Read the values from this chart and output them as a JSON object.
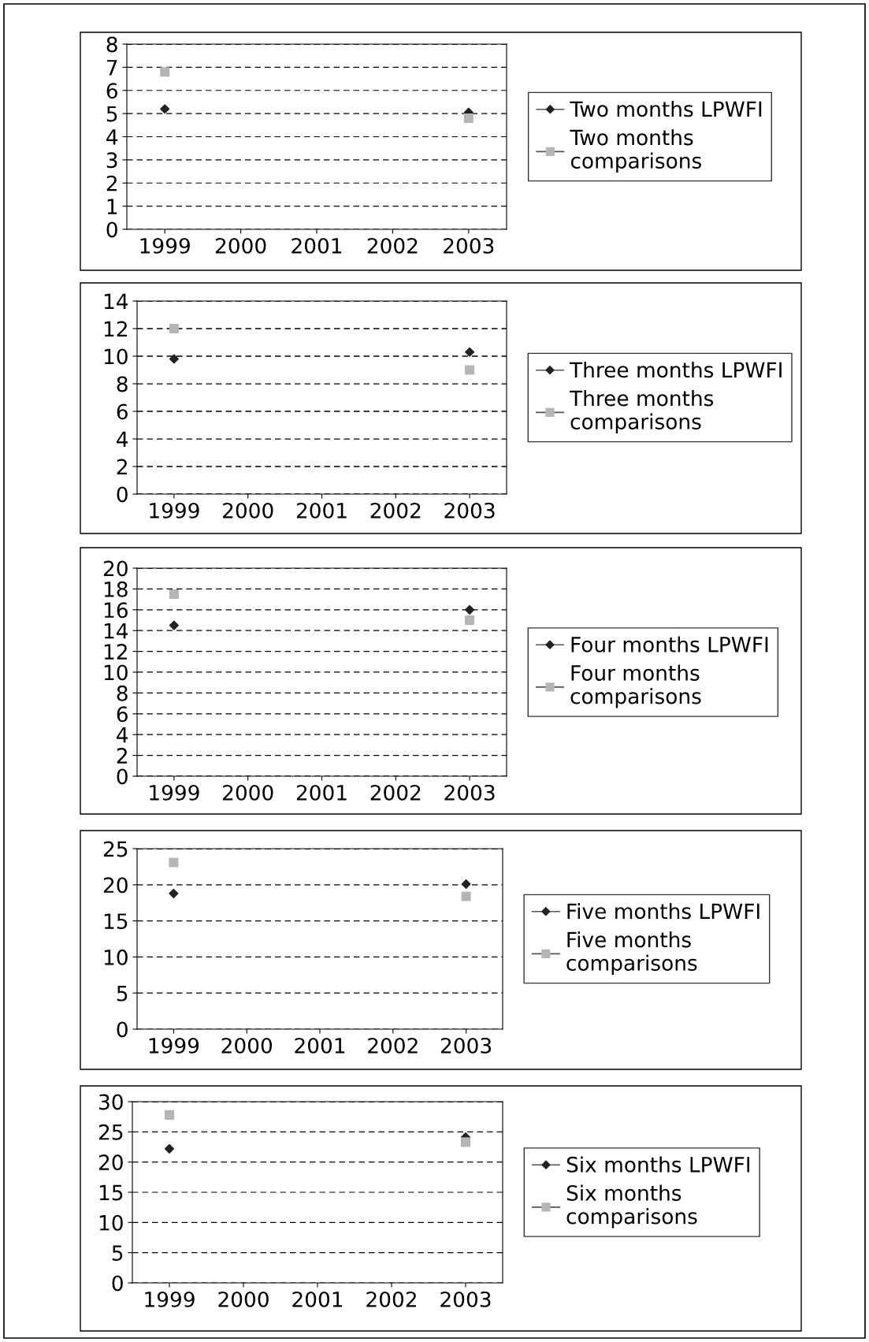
{
  "chart_data": [
    {
      "type": "scatter",
      "categories": [
        "1999",
        "2000",
        "2001",
        "2002",
        "2003"
      ],
      "ylim": [
        0,
        8
      ],
      "yticks": [
        0,
        1,
        2,
        3,
        4,
        5,
        6,
        7,
        8
      ],
      "grid": "y",
      "legend": "right",
      "series": [
        {
          "name": "Two months LPWFI",
          "color": "#222222",
          "marker": "diamond",
          "values": [
            5.2,
            null,
            null,
            null,
            5.05
          ]
        },
        {
          "name": "Two months comparisons",
          "color": "#b5b5b5",
          "marker": "square",
          "values": [
            6.8,
            null,
            null,
            null,
            4.8
          ]
        }
      ]
    },
    {
      "type": "scatter",
      "categories": [
        "1999",
        "2000",
        "2001",
        "2002",
        "2003"
      ],
      "ylim": [
        0,
        14
      ],
      "yticks": [
        0,
        2,
        4,
        6,
        8,
        10,
        12,
        14
      ],
      "grid": "y",
      "legend": "right",
      "series": [
        {
          "name": "Three months LPWFI",
          "color": "#222222",
          "marker": "diamond",
          "values": [
            9.8,
            null,
            null,
            null,
            10.3
          ]
        },
        {
          "name": "Three months comparisons",
          "color": "#b5b5b5",
          "marker": "square",
          "values": [
            12.0,
            null,
            null,
            null,
            9.0
          ]
        }
      ]
    },
    {
      "type": "scatter",
      "categories": [
        "1999",
        "2000",
        "2001",
        "2002",
        "2003"
      ],
      "ylim": [
        0,
        20
      ],
      "yticks": [
        0,
        2,
        4,
        6,
        8,
        10,
        12,
        14,
        16,
        18,
        20
      ],
      "grid": "y",
      "legend": "right",
      "series": [
        {
          "name": "Four months LPWFI",
          "color": "#222222",
          "marker": "diamond",
          "values": [
            14.5,
            null,
            null,
            null,
            16.0
          ]
        },
        {
          "name": "Four months comparisons",
          "color": "#b5b5b5",
          "marker": "square",
          "values": [
            17.5,
            null,
            null,
            null,
            15.0
          ]
        }
      ]
    },
    {
      "type": "scatter",
      "categories": [
        "1999",
        "2000",
        "2001",
        "2002",
        "2003"
      ],
      "ylim": [
        0,
        25
      ],
      "yticks": [
        0,
        5,
        10,
        15,
        20,
        25
      ],
      "grid": "y",
      "legend": "right",
      "series": [
        {
          "name": "Five months LPWFI",
          "color": "#222222",
          "marker": "diamond",
          "values": [
            18.8,
            null,
            null,
            null,
            20.1
          ]
        },
        {
          "name": "Five months comparisons",
          "color": "#b5b5b5",
          "marker": "square",
          "values": [
            23.1,
            null,
            null,
            null,
            18.4
          ]
        }
      ]
    },
    {
      "type": "scatter",
      "categories": [
        "1999",
        "2000",
        "2001",
        "2002",
        "2003"
      ],
      "ylim": [
        0,
        30
      ],
      "yticks": [
        0,
        5,
        10,
        15,
        20,
        25,
        30
      ],
      "grid": "y",
      "legend": "right",
      "series": [
        {
          "name": "Six months LPWFI",
          "color": "#222222",
          "marker": "diamond",
          "values": [
            22.2,
            null,
            null,
            null,
            24.1
          ]
        },
        {
          "name": "Six months comparisons",
          "color": "#b5b5b5",
          "marker": "square",
          "values": [
            27.8,
            null,
            null,
            null,
            23.3
          ]
        }
      ]
    }
  ]
}
